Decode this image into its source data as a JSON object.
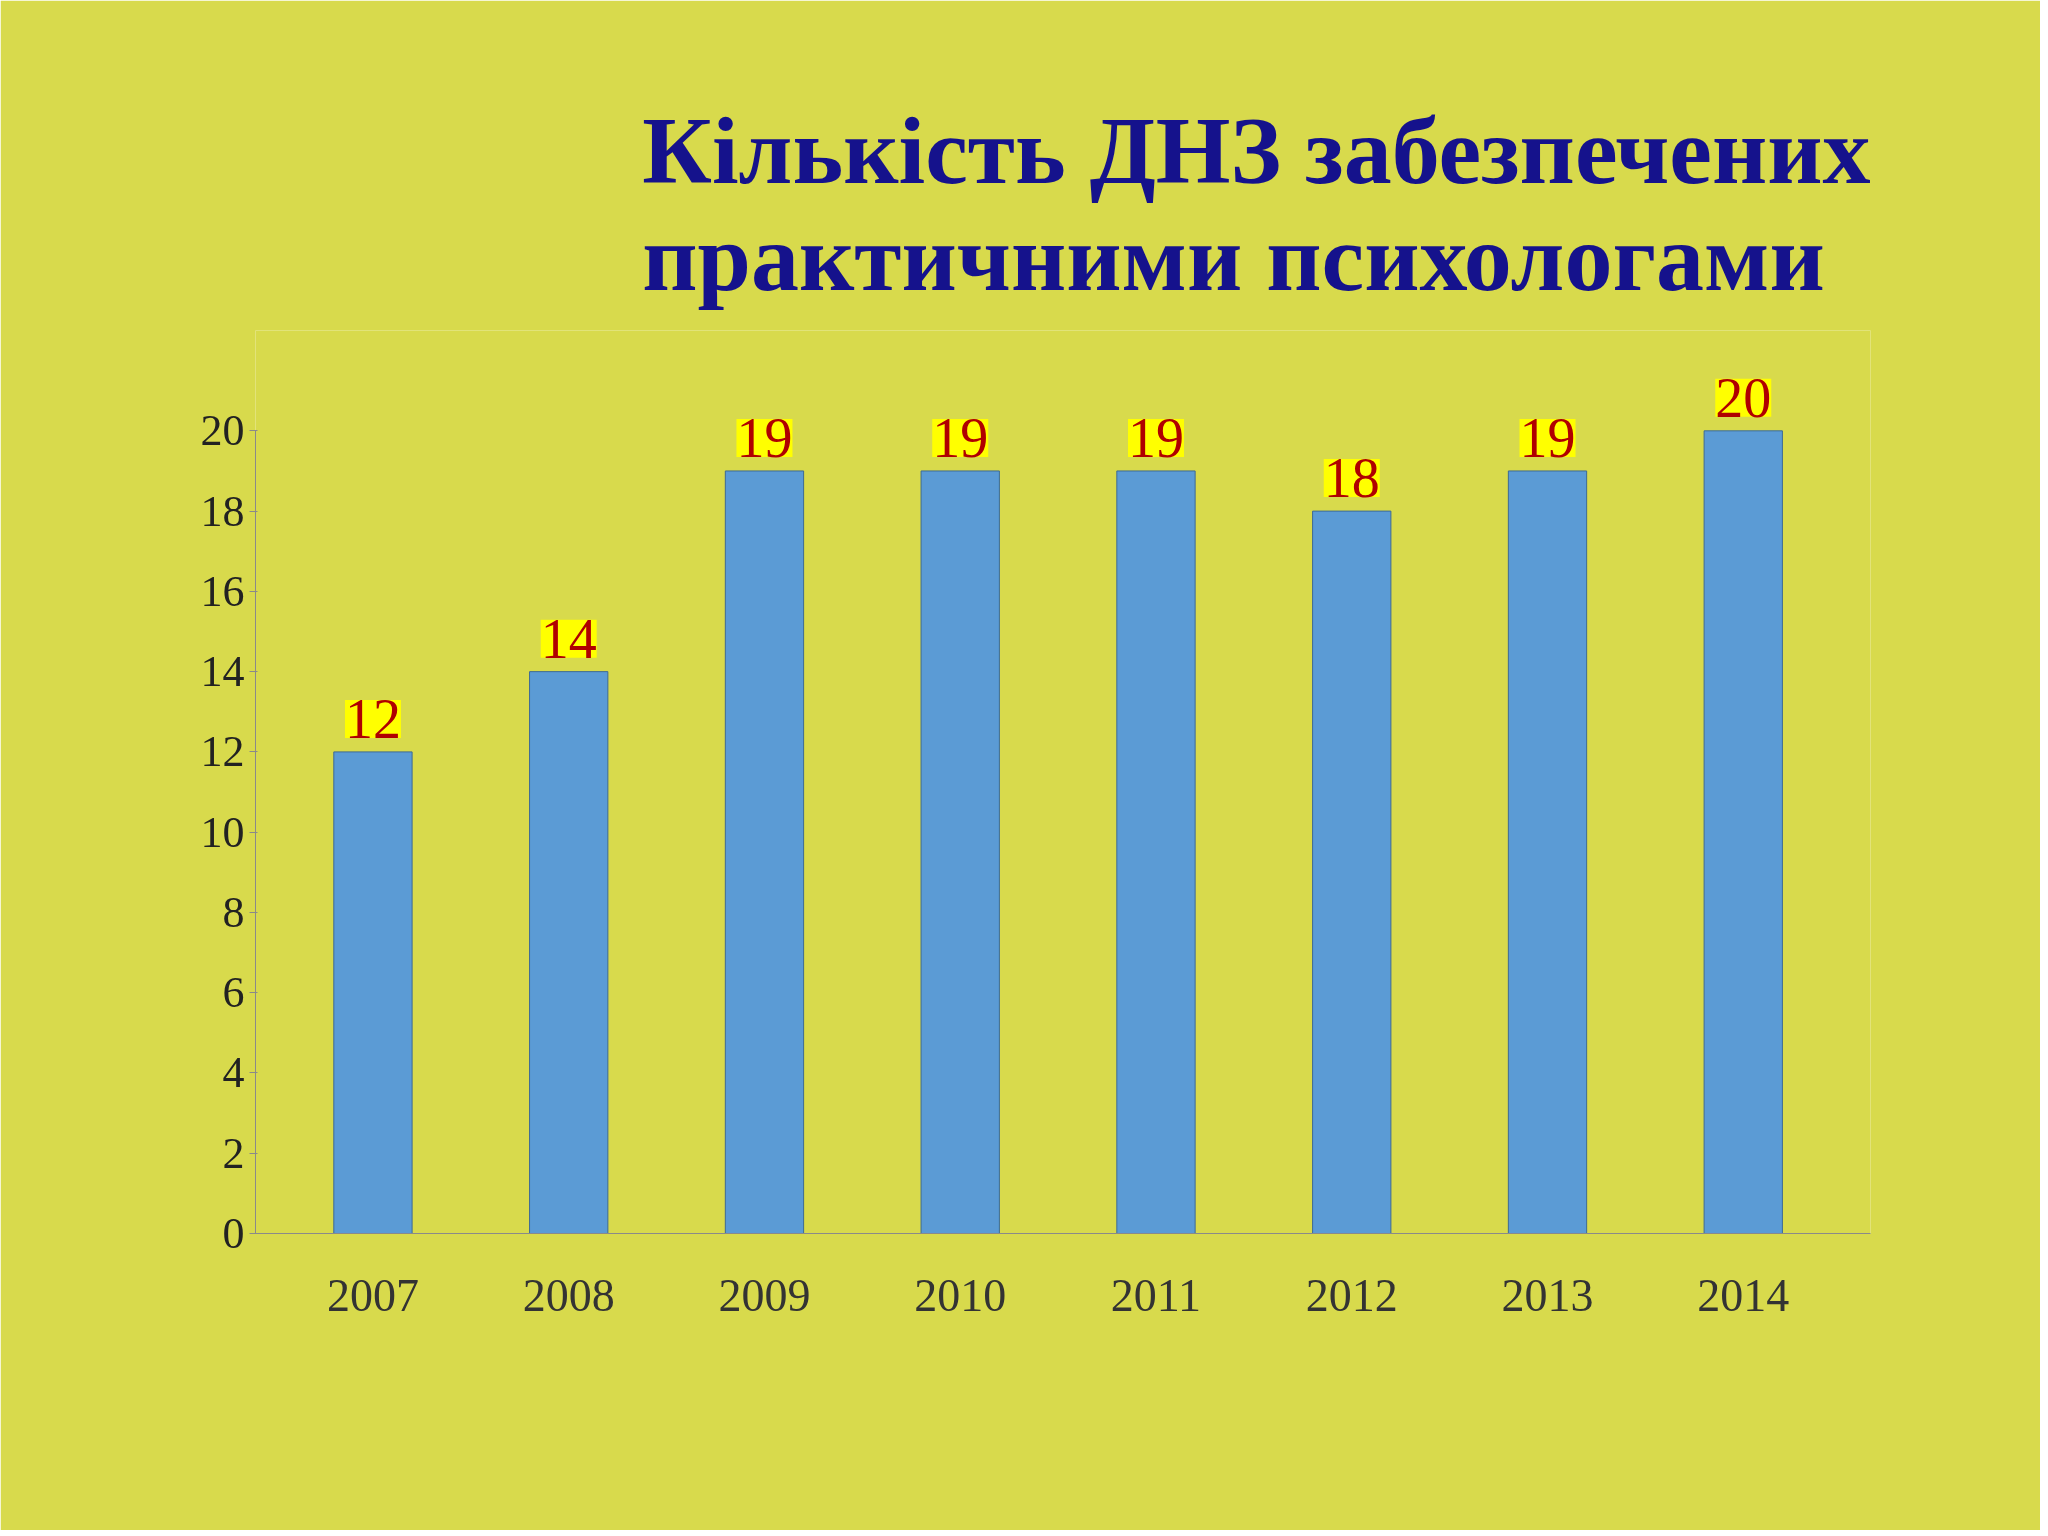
{
  "chart_data": {
    "type": "bar",
    "title": "Кількість ДНЗ забезпечених практичними психологами",
    "categories": [
      "2007",
      "2008",
      "2009",
      "2010",
      "2011",
      "2012",
      "2013",
      "2014"
    ],
    "values": [
      12,
      14,
      19,
      19,
      19,
      18,
      19,
      20
    ],
    "color": "#5b9bd5",
    "ylim": [
      0,
      20
    ],
    "yticks": [
      0,
      2,
      4,
      6,
      8,
      10,
      12,
      14,
      16,
      18,
      20
    ],
    "grid": false,
    "data_labels": true
  }
}
